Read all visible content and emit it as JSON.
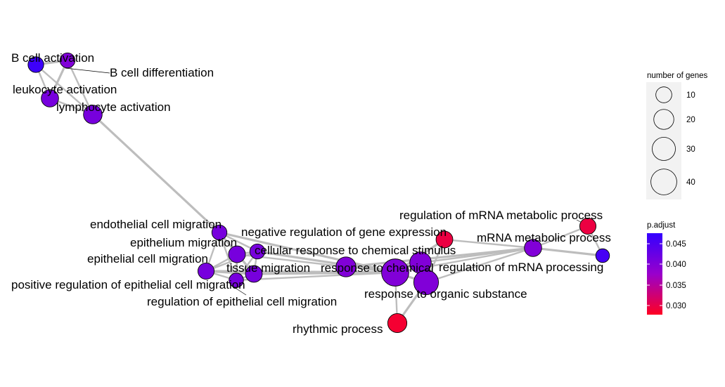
{
  "colors": {
    "edge": "#bdbdbd",
    "node_stroke": "#000000",
    "padj_low": "#ff0000",
    "padj_high": "#0000ff",
    "legend_panel": "#f2f2f2"
  },
  "chart_data": {
    "type": "network",
    "description_source": "enrichment map of GO terms",
    "nodes": [
      {
        "id": "bca",
        "label": "B cell activation",
        "genes": 8,
        "padj": 0.047
      },
      {
        "id": "bcd",
        "label": "B cell differentiation",
        "genes": 7,
        "padj": 0.04
      },
      {
        "id": "lka",
        "label": "leukocyte activation",
        "genes": 11,
        "padj": 0.041
      },
      {
        "id": "lya",
        "label": "lymphocyte activation",
        "genes": 14,
        "padj": 0.041
      },
      {
        "id": "ecm",
        "label": "endothelial cell migration",
        "genes": 7,
        "padj": 0.041
      },
      {
        "id": "epm",
        "label": "epithelium migration",
        "genes": 10,
        "padj": 0.041
      },
      {
        "id": "epc",
        "label": "epithelial cell migration",
        "genes": 9,
        "padj": 0.041
      },
      {
        "id": "ter",
        "label": "positive regulation of epithelial cell migration",
        "genes": 6,
        "padj": 0.041
      },
      {
        "id": "tim",
        "label": "tissue migration",
        "genes": 10,
        "padj": 0.041
      },
      {
        "id": "rec",
        "label": "regulation of epithelial cell migration",
        "genes": 7,
        "padj": 0.041
      },
      {
        "id": "ngx",
        "label": "negative regulation of gene expression",
        "genes": 17,
        "padj": 0.04
      },
      {
        "id": "ccs",
        "label": "cellular response to chemical stimulus",
        "genes": 21,
        "padj": 0.04
      },
      {
        "id": "rch",
        "label": "response to chemical",
        "genes": 40,
        "padj": 0.04
      },
      {
        "id": "ros",
        "label": "response to organic substance",
        "genes": 31,
        "padj": 0.04
      },
      {
        "id": "rhy",
        "label": "rhythmic process",
        "genes": 15,
        "padj": 0.028
      },
      {
        "id": "rmm",
        "label": "regulation of mRNA metabolic process",
        "genes": 9,
        "padj": 0.029
      },
      {
        "id": "mmp",
        "label": "mRNA metabolic process",
        "genes": 11,
        "padj": 0.04
      },
      {
        "id": "rmp",
        "label": "regulation of mRNA processing",
        "genes": 5,
        "padj": 0.046
      },
      {
        "id": "mrp",
        "label": "",
        "genes": 10,
        "padj": 0.029
      }
    ],
    "edges": [
      [
        "bca",
        "bcd"
      ],
      [
        "bca",
        "lka"
      ],
      [
        "bca",
        "lya"
      ],
      [
        "bcd",
        "lka"
      ],
      [
        "bcd",
        "lya"
      ],
      [
        "lka",
        "lya"
      ],
      [
        "lya",
        "ecm"
      ],
      [
        "ecm",
        "epm"
      ],
      [
        "ecm",
        "epc"
      ],
      [
        "ecm",
        "tim"
      ],
      [
        "ecm",
        "ter"
      ],
      [
        "ecm",
        "rec"
      ],
      [
        "ecm",
        "rch"
      ],
      [
        "epm",
        "epc"
      ],
      [
        "epm",
        "tim"
      ],
      [
        "epm",
        "ter"
      ],
      [
        "epm",
        "rec"
      ],
      [
        "epm",
        "rch"
      ],
      [
        "epc",
        "tim"
      ],
      [
        "epc",
        "ter"
      ],
      [
        "epc",
        "rec"
      ],
      [
        "epc",
        "rch"
      ],
      [
        "tim",
        "ter"
      ],
      [
        "tim",
        "rec"
      ],
      [
        "tim",
        "rch"
      ],
      [
        "ter",
        "rec"
      ],
      [
        "ter",
        "rch"
      ],
      [
        "rec",
        "rch"
      ],
      [
        "rch",
        "ngx"
      ],
      [
        "rch",
        "ccs"
      ],
      [
        "rch",
        "ros"
      ],
      [
        "rch",
        "rhy"
      ],
      [
        "rch",
        "mmp"
      ],
      [
        "rch",
        "mrp"
      ],
      [
        "ccs",
        "ros"
      ],
      [
        "ccs",
        "mmp"
      ],
      [
        "ros",
        "rhy"
      ],
      [
        "ros",
        "mmp"
      ],
      [
        "ros",
        "mrp"
      ],
      [
        "ngx",
        "mmp"
      ],
      [
        "mrp",
        "mmp"
      ],
      [
        "mmp",
        "rmm"
      ],
      [
        "mmp",
        "rmp"
      ],
      [
        "rmm",
        "rmp"
      ]
    ],
    "legend_size": {
      "title": "number of genes",
      "breaks": [
        10,
        20,
        30,
        40
      ]
    },
    "legend_color": {
      "title": "p.adjust",
      "breaks": [
        "0.045",
        "0.040",
        "0.035",
        "0.030"
      ],
      "domain": [
        0.027,
        0.048
      ]
    }
  }
}
